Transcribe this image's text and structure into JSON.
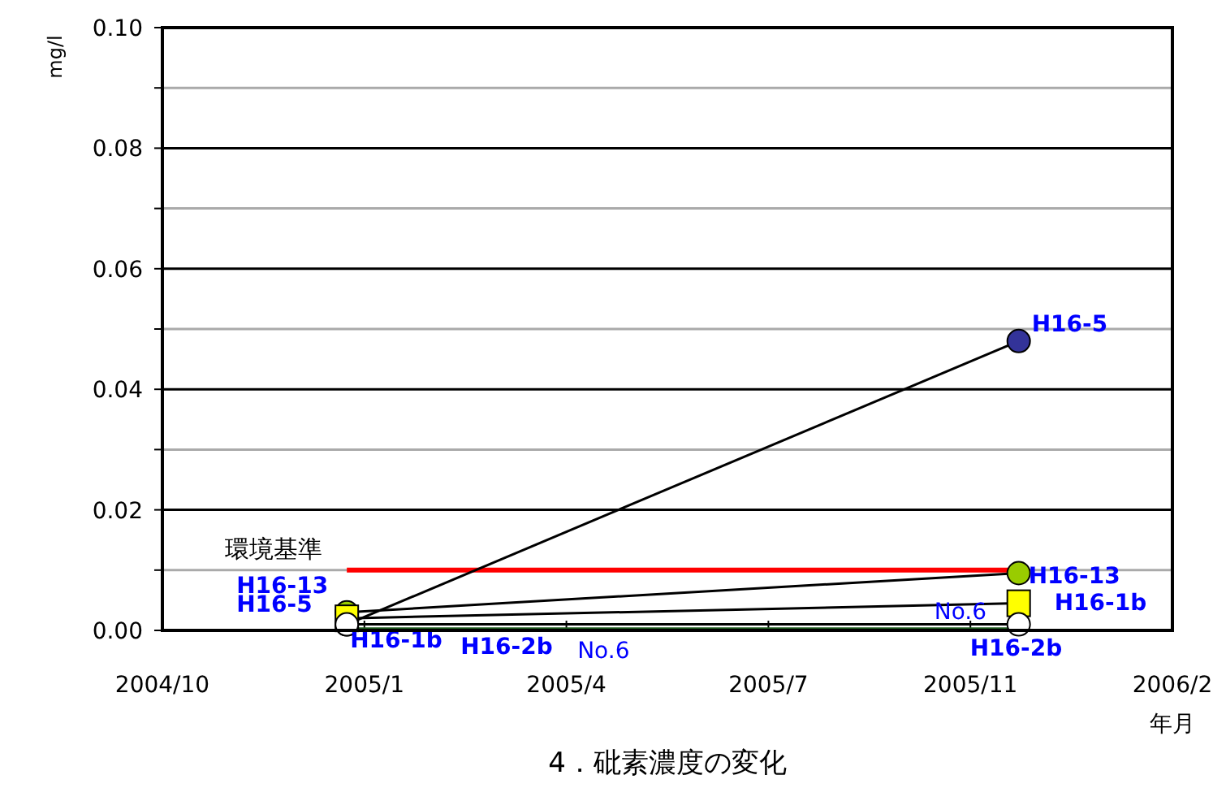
{
  "chart_data": {
    "type": "line",
    "title": "4．砒素濃度の変化",
    "xlabel": "年月",
    "ylabel": "mg/l",
    "xlim": [
      "2004-10-01",
      "2006-01-04"
    ],
    "xticks": [
      {
        "value": "2004-10-01",
        "label": "2004/10"
      },
      {
        "value": "2005-01-01",
        "label": "2005/1"
      },
      {
        "value": "2005-04-03",
        "label": "2005/4"
      },
      {
        "value": "2005-07-04",
        "label": "2005/7"
      },
      {
        "value": "2005-10-04",
        "label": "2005/11"
      },
      {
        "value": "2006-01-04",
        "label": "2006/2"
      }
    ],
    "ylim": [
      0,
      0.1
    ],
    "yticks": [
      {
        "value": 0,
        "label": "0.00"
      },
      {
        "value": 0.01,
        "label": null
      },
      {
        "value": 0.02,
        "label": "0.02"
      },
      {
        "value": 0.03,
        "label": null
      },
      {
        "value": 0.04,
        "label": "0.04"
      },
      {
        "value": 0.05,
        "label": null
      },
      {
        "value": 0.06,
        "label": "0.06"
      },
      {
        "value": 0.07,
        "label": null
      },
      {
        "value": 0.08,
        "label": "0.08"
      },
      {
        "value": 0.09,
        "label": null
      },
      {
        "value": 0.1,
        "label": "0.10"
      }
    ],
    "grid": "y",
    "legend": false,
    "x": [
      "2004-12-24",
      "2005-10-26"
    ],
    "series": [
      {
        "name": "H16-5",
        "color": "#333399",
        "marker": "circle",
        "values": [
          0.001,
          0.048
        ]
      },
      {
        "name": "H16-13",
        "color": "#99cc00",
        "marker": "circle",
        "values": [
          0.003,
          0.0095
        ]
      },
      {
        "name": "H16-1b",
        "color": "#ffff00",
        "marker": "square",
        "values": [
          0.002,
          0.0045
        ]
      },
      {
        "name": "H16-2b",
        "color": "#ffffff",
        "marker": "circle",
        "values": [
          0.001,
          0.001
        ]
      },
      {
        "name": "No.6",
        "color": "#1e5a1e",
        "marker": "none",
        "values": [
          0.0003,
          0.0003
        ]
      }
    ],
    "ref_lines": [
      {
        "axis": "y",
        "value": 0.01,
        "label": "環境基準",
        "color": "#ff0000"
      }
    ]
  }
}
